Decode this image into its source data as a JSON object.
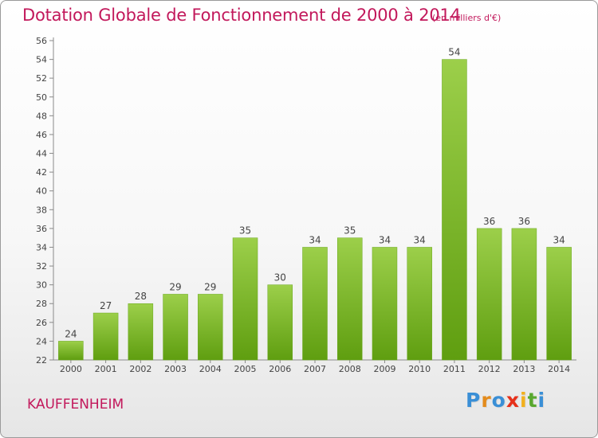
{
  "chart_data": {
    "type": "bar",
    "title": "Dotation Globale de Fonctionnement de 2000 à 2014",
    "unit": "(en milliers d'€)",
    "categories": [
      "2000",
      "2001",
      "2002",
      "2003",
      "2004",
      "2005",
      "2006",
      "2007",
      "2008",
      "2009",
      "2010",
      "2011",
      "2012",
      "2013",
      "2014"
    ],
    "values": [
      24,
      27,
      28,
      29,
      29,
      35,
      30,
      34,
      35,
      34,
      34,
      54,
      36,
      36,
      34
    ],
    "ylim": [
      22,
      56
    ],
    "yticks": [
      22,
      24,
      26,
      28,
      30,
      32,
      34,
      36,
      38,
      40,
      42,
      44,
      46,
      48,
      50,
      52,
      54,
      56
    ],
    "grid": false,
    "colors": {
      "bar_light": "#9ccf4a",
      "bar_dark": "#5f9e10",
      "title": "#c2185b"
    }
  },
  "footer": {
    "commune": "KAUFFENHEIM",
    "logo": [
      "P",
      "r",
      "o",
      "x",
      "i",
      "t",
      "i"
    ],
    "logo_colors": [
      "#3a8fd6",
      "#e38b1c",
      "#3a8fd6",
      "#e6301a",
      "#f2b01e",
      "#59a82e",
      "#3a8fd6"
    ]
  }
}
